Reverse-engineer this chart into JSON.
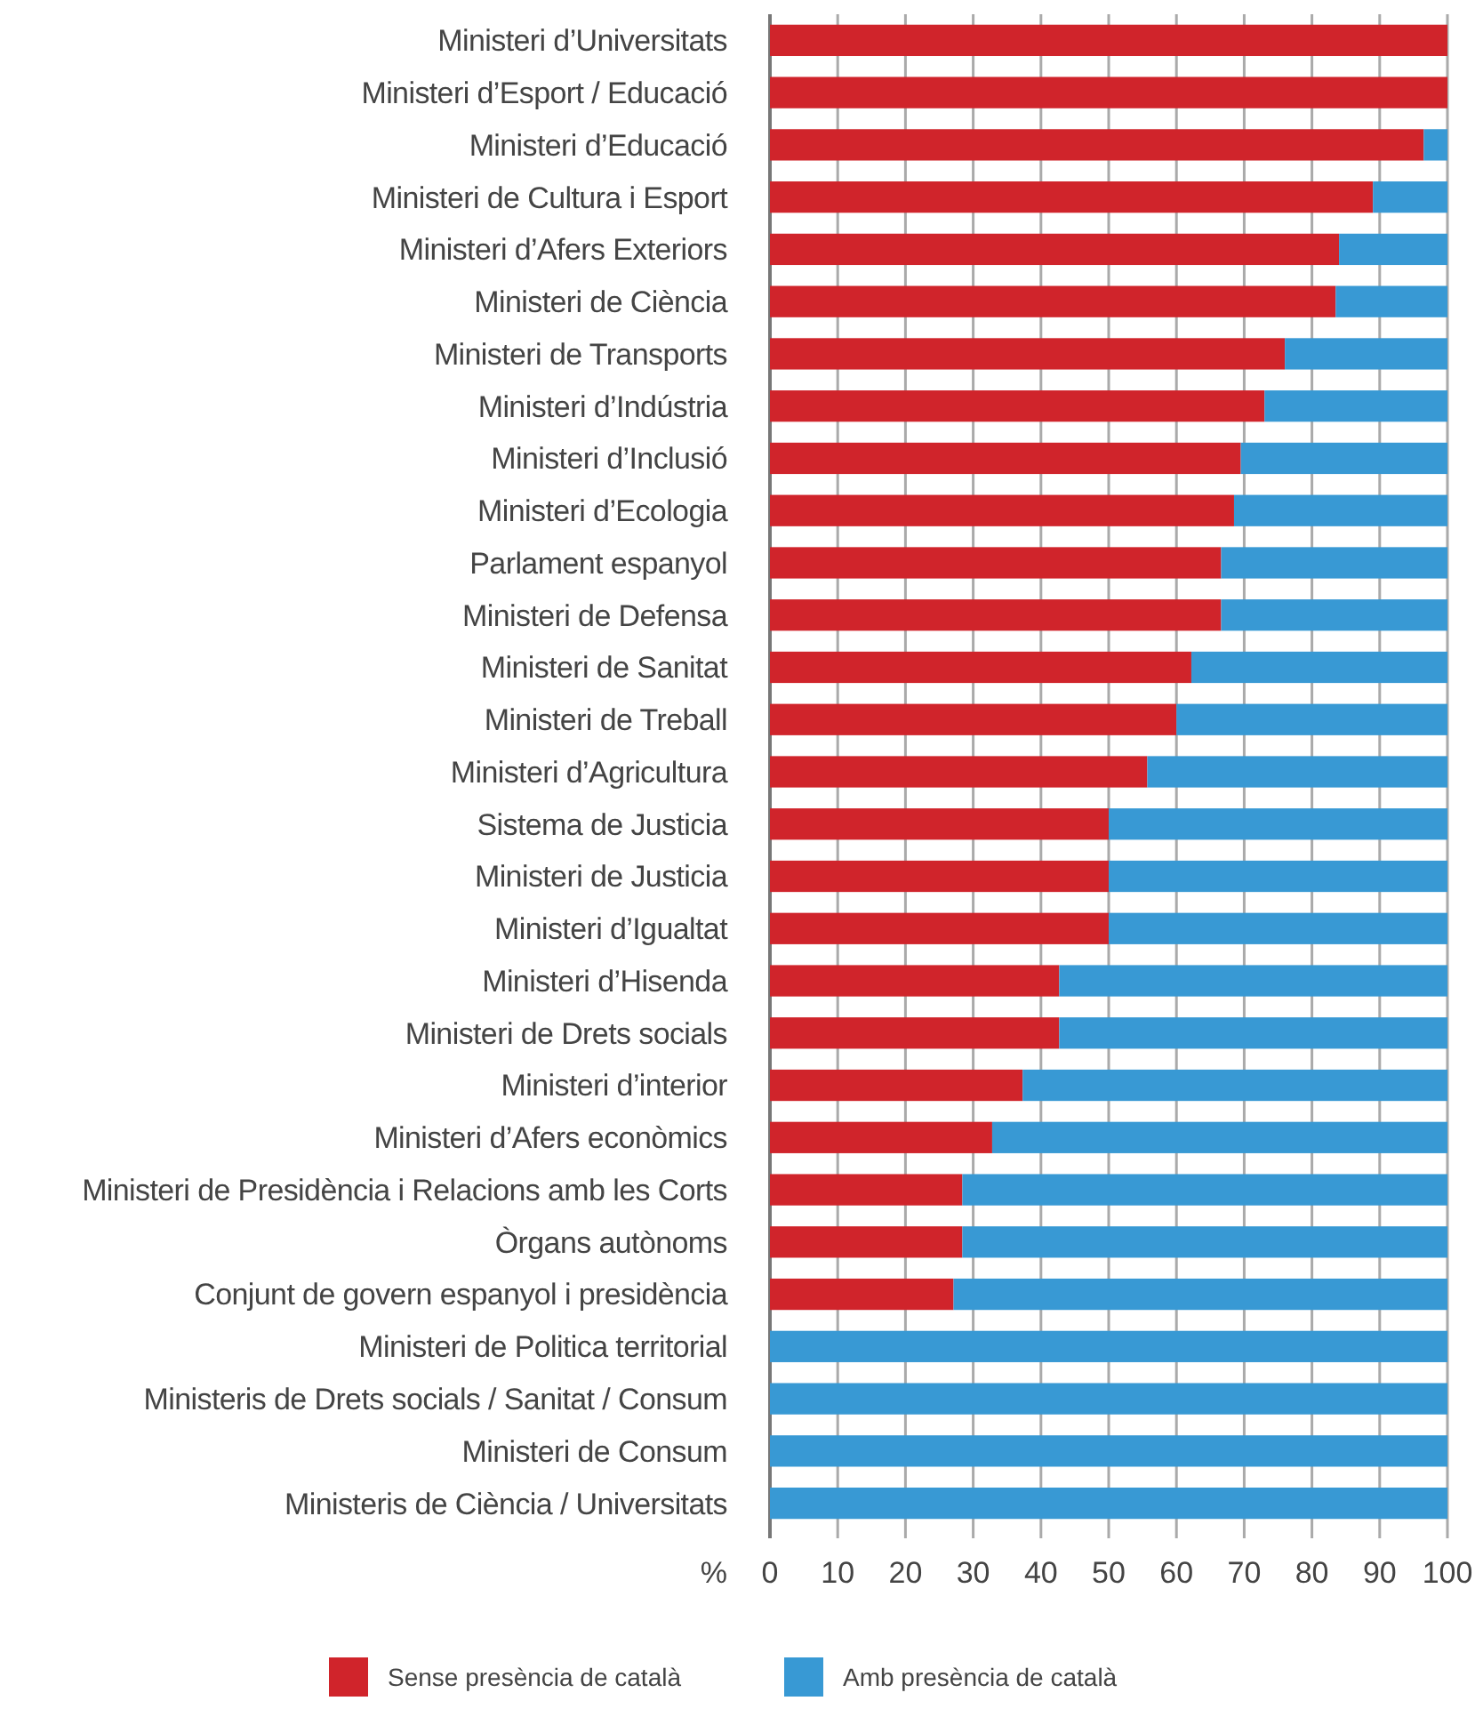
{
  "chart_data": {
    "type": "bar",
    "orientation": "horizontal",
    "stacked": true,
    "xlabel": "%",
    "categories": [
      "Ministeri d’Universitats",
      "Ministeri d’Esport / Educació",
      "Ministeri d’Educació",
      "Ministeri de Cultura i Esport",
      "Ministeri d’Afers Exteriors",
      "Ministeri de Ciència",
      "Ministeri de Transports",
      "Ministeri d’Indústria",
      "Ministeri d’Inclusió",
      "Ministeri d’Ecologia",
      "Parlament espanyol",
      "Ministeri de Defensa",
      "Ministeri de Sanitat",
      "Ministeri de Treball",
      "Ministeri d’Agricultura",
      "Sistema de Justicia",
      "Ministeri de Justicia",
      "Ministeri d’Igualtat",
      "Ministeri d’Hisenda",
      "Ministeri de Drets socials",
      "Ministeri d’interior",
      "Ministeri d’Afers econòmics",
      "Ministeri de Presidència i Relacions amb les Corts",
      "Òrgans autònoms",
      "Conjunt de govern espanyol i presidència",
      "Ministeri de Politica territorial",
      "Ministeris de Drets socials / Sanitat / Consum",
      "Ministeri de Consum",
      "Ministeris de Ciència / Universitats"
    ],
    "series": [
      {
        "name": "Sense presència de català",
        "color": "#d0242b",
        "values": [
          100,
          100,
          96.5,
          89,
          84,
          83.5,
          76,
          73,
          69.5,
          68.5,
          66.6,
          66.6,
          62.2,
          60,
          55.7,
          50,
          50,
          50,
          42.7,
          42.7,
          37.3,
          32.8,
          28.4,
          28.4,
          27.1,
          0,
          0,
          0,
          0
        ]
      },
      {
        "name": "Amb presència de català",
        "color": "#3899d4",
        "values": [
          0,
          0,
          3.5,
          11,
          16,
          16.5,
          24,
          27,
          30.5,
          31.5,
          33.4,
          33.4,
          37.8,
          40,
          44.3,
          50,
          50,
          50,
          57.3,
          57.3,
          62.7,
          67.2,
          71.6,
          71.6,
          72.9,
          100,
          100,
          100,
          100
        ]
      }
    ],
    "xlim": [
      0,
      100
    ],
    "xticks": [
      0,
      10,
      20,
      30,
      40,
      50,
      60,
      70,
      80,
      90,
      100
    ],
    "grid": "x",
    "legend": "bottom"
  }
}
